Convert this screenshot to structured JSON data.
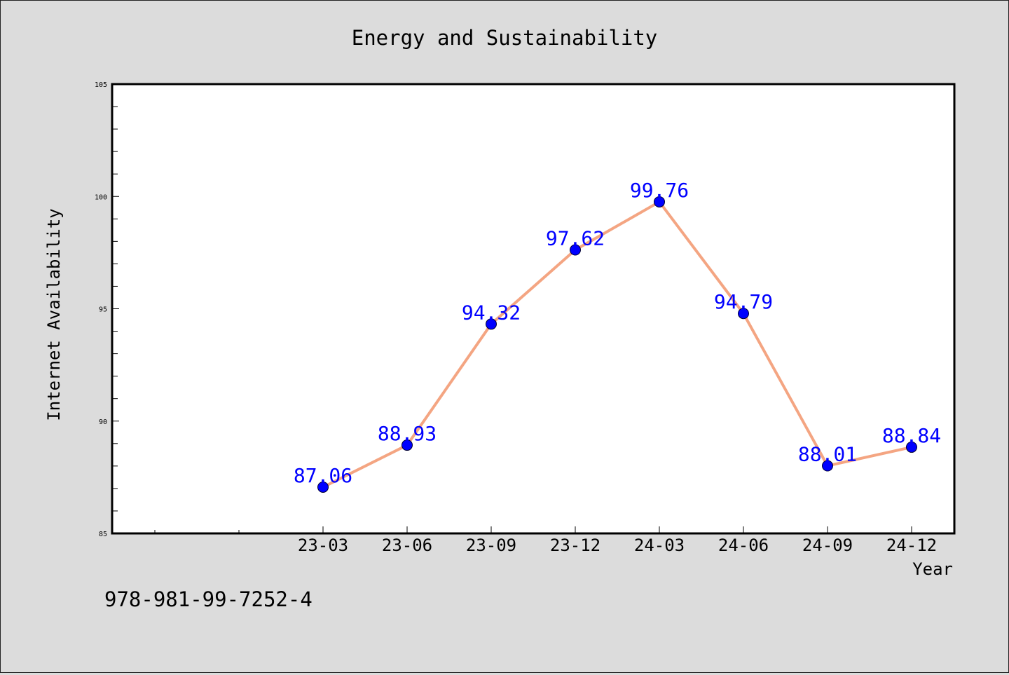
{
  "chart_data": {
    "type": "line",
    "title": "Energy and Sustainability",
    "xlabel": "Year",
    "ylabel": "Internet Availability",
    "categories": [
      "23-03",
      "23-06",
      "23-09",
      "23-12",
      "24-03",
      "24-06",
      "24-09",
      "24-12"
    ],
    "values": [
      87.06,
      88.93,
      94.32,
      97.62,
      99.76,
      94.79,
      88.01,
      88.84
    ],
    "data_labels": [
      "87.06",
      "88.93",
      "94.32",
      "97.62",
      "99.76",
      "94.79",
      "88.01",
      "88.84"
    ],
    "ylim": [
      85,
      105
    ],
    "y_ticks": [
      85,
      90,
      95,
      100,
      105
    ],
    "y_tick_labels": [
      "85",
      "90",
      "95",
      "100",
      "105"
    ],
    "grid": false,
    "line_color": "#f4a582",
    "marker_color": "#0000ff",
    "label_color": "#0000ff"
  },
  "footer_text": "978-981-99-7252-4"
}
